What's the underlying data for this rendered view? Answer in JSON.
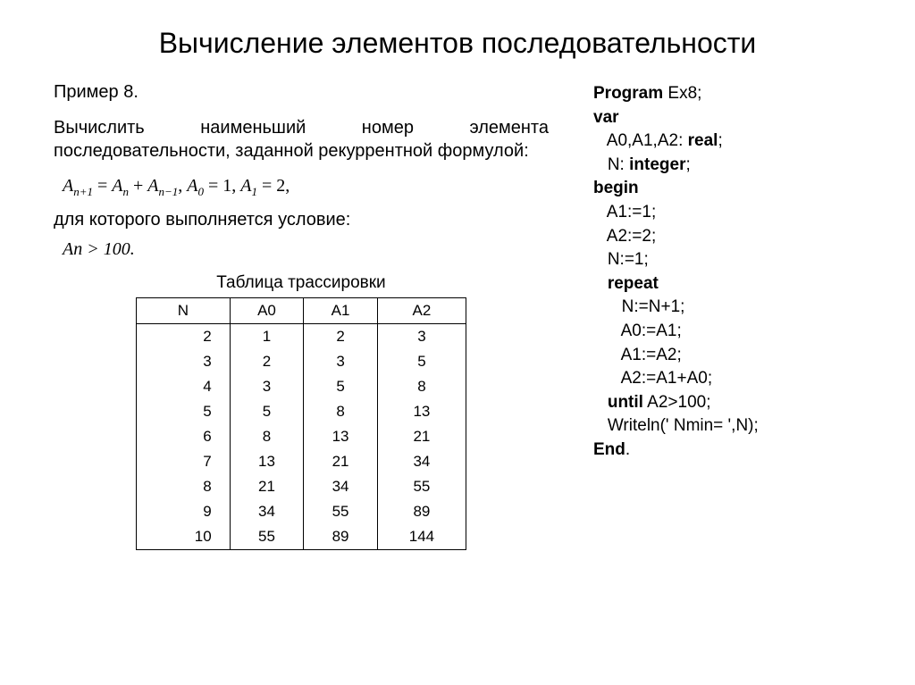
{
  "title": "Вычисление элементов последовательности",
  "example_label": "Пример 8.",
  "description": "Вычислить наименьший номер элемента последовательности, заданной рекуррентной формулой:",
  "formula_text": "A_{n+1} = A_n + A_{n-1}, A_0 = 1, A_1 = 2,",
  "condition_text": "для которого выполняется условие:",
  "condition_formula": "A_n > 100.",
  "table_caption": "Таблица трассировки",
  "table": {
    "columns": [
      "N",
      "A0",
      "A1",
      "A2"
    ],
    "rows": [
      [
        "2",
        "1",
        "2",
        "3"
      ],
      [
        "3",
        "2",
        "3",
        "5"
      ],
      [
        "4",
        "3",
        "5",
        "8"
      ],
      [
        "5",
        "5",
        "8",
        "13"
      ],
      [
        "6",
        "8",
        "13",
        "21"
      ],
      [
        "7",
        "13",
        "21",
        "34"
      ],
      [
        "8",
        "21",
        "34",
        "55"
      ],
      [
        "9",
        "34",
        "55",
        "89"
      ],
      [
        "10",
        "55",
        "89",
        "144"
      ]
    ]
  },
  "code": {
    "lines": [
      {
        "text": "Program Ex8;",
        "bold_parts": [
          "Program"
        ],
        "indent": 0
      },
      {
        "text": "var",
        "bold_parts": [
          "var"
        ],
        "indent": 0
      },
      {
        "text": "A0,A1,A2: real;",
        "bold_parts": [
          "real"
        ],
        "indent": 1
      },
      {
        "text": "N: integer;",
        "bold_parts": [
          "integer"
        ],
        "indent": 1
      },
      {
        "text": "begin",
        "bold_parts": [
          "begin"
        ],
        "indent": 0
      },
      {
        "text": "A1:=1;",
        "bold_parts": [],
        "indent": 1
      },
      {
        "text": "A2:=2;",
        "bold_parts": [],
        "indent": 1
      },
      {
        "text": "N:=1;",
        "bold_parts": [],
        "indent": 1
      },
      {
        "text": "repeat",
        "bold_parts": [
          "repeat"
        ],
        "indent": 1
      },
      {
        "text": "N:=N+1;",
        "bold_parts": [],
        "indent": 2
      },
      {
        "text": "A0:=A1;",
        "bold_parts": [],
        "indent": 2
      },
      {
        "text": "A1:=A2;",
        "bold_parts": [],
        "indent": 2
      },
      {
        "text": "A2:=A1+A0;",
        "bold_parts": [],
        "indent": 2
      },
      {
        "text": "until A2>100;",
        "bold_parts": [
          "until"
        ],
        "indent": 1
      },
      {
        "text": "Writeln(' Nmin= ',N);",
        "bold_parts": [],
        "indent": 1
      },
      {
        "text": "End.",
        "bold_parts": [
          "End"
        ],
        "indent": 0
      }
    ]
  },
  "colors": {
    "background": "#ffffff",
    "text": "#000000",
    "border": "#000000"
  }
}
